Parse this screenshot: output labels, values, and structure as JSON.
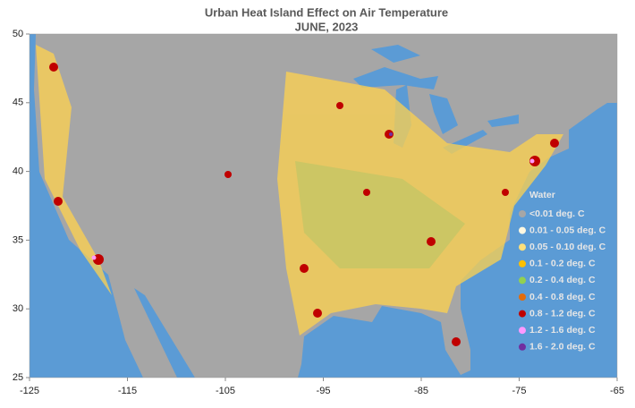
{
  "title": "Urban Heat Island Effect on Air Temperature",
  "subtitle": "JUNE, 2023",
  "xlim": [
    -125,
    -65
  ],
  "xticks": [
    -125,
    -115,
    -105,
    -95,
    -85,
    -75,
    -65
  ],
  "ylim": [
    25,
    50
  ],
  "yticks": [
    25,
    30,
    35,
    40,
    45,
    50
  ],
  "water": {
    "label": "Water",
    "color": "#5b9bd5"
  },
  "legend": [
    {
      "label": "<0.01 deg. C",
      "color": "#a6a6a6"
    },
    {
      "label": "0.01 - 0.05 deg. C",
      "color": "#fff8e1"
    },
    {
      "label": "0.05 - 0.10 deg. C",
      "color": "#ffe07a"
    },
    {
      "label": "0.1 - 0.2 deg. C",
      "color": "#ffc000"
    },
    {
      "label": "0.2 - 0.4 deg. C",
      "color": "#92d050"
    },
    {
      "label": "0.4 - 0.8 deg. C",
      "color": "#e46c0a"
    },
    {
      "label": "0.8 - 1.2 deg. C",
      "color": "#c00000"
    },
    {
      "label": "1.2 - 1.6 deg. C",
      "color": "#ff99ff"
    },
    {
      "label": "1.6 - 2.0 deg. C",
      "color": "#7030a0"
    }
  ]
}
